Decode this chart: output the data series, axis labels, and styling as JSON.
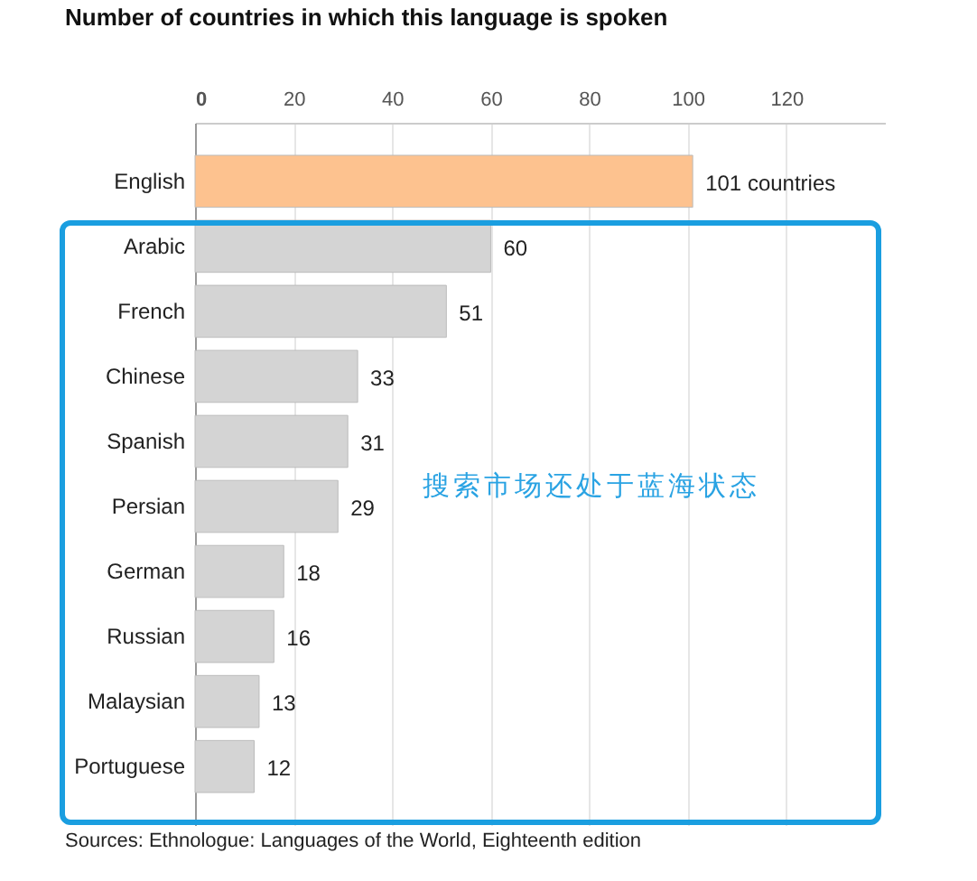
{
  "chart_data": {
    "type": "bar",
    "orientation": "horizontal",
    "title": "Number of countries in which this language is spoken",
    "categories": [
      "English",
      "Arabic",
      "French",
      "Chinese",
      "Spanish",
      "Persian",
      "German",
      "Russian",
      "Malaysian",
      "Portuguese"
    ],
    "values": [
      101,
      60,
      51,
      33,
      31,
      29,
      18,
      16,
      13,
      12
    ],
    "colors": [
      "#fdc28f",
      "#d4d4d4",
      "#d4d4d4",
      "#d4d4d4",
      "#d4d4d4",
      "#d4d4d4",
      "#d4d4d4",
      "#d4d4d4",
      "#d4d4d4",
      "#d4d4d4"
    ],
    "value_labels": [
      "101 countries",
      "60",
      "51",
      "33",
      "31",
      "29",
      "18",
      "16",
      "13",
      "12"
    ],
    "xlim": [
      0,
      140
    ],
    "xticks": [
      0,
      20,
      40,
      60,
      80,
      100,
      120
    ],
    "grid": "x",
    "annotations": [
      "搜索市场还处于蓝海状态",
      "Sources: Ethnologue: Languages of the World, Eighteenth edition"
    ]
  }
}
